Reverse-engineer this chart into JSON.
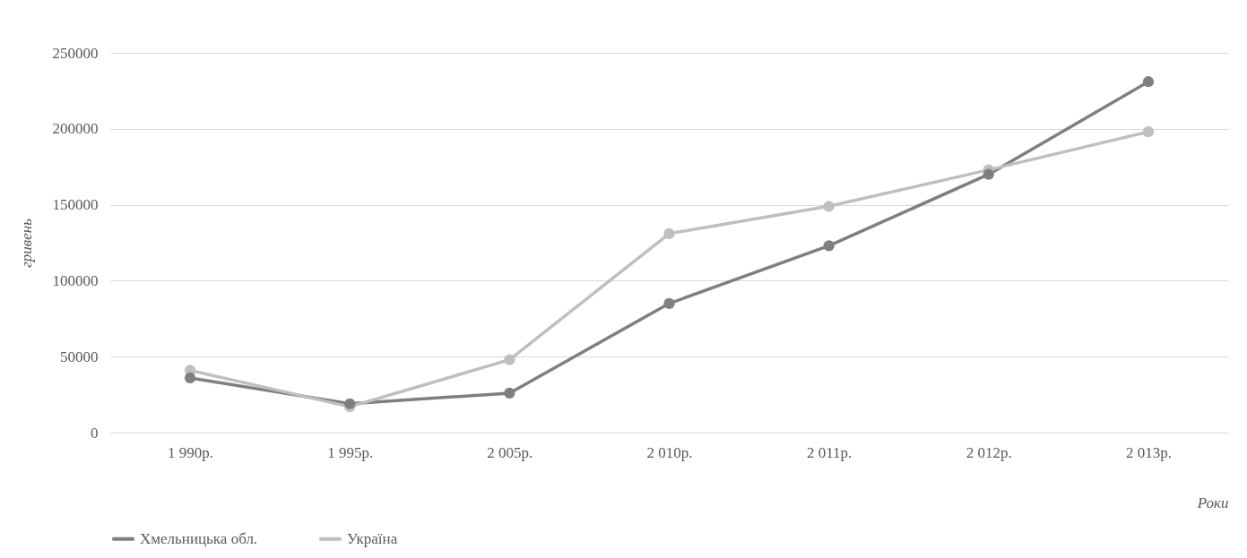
{
  "chart_data": {
    "type": "line",
    "xlabel": "Роки",
    "ylabel": "гривень",
    "categories": [
      "1 990р.",
      "1 995р.",
      "2 005р.",
      "2 010р.",
      "2 011р.",
      "2 012р.",
      "2 013р."
    ],
    "series": [
      {
        "name": "Хмельницька обл.",
        "color": "#7f7f7f",
        "values": [
          36000,
          19000,
          26000,
          85000,
          123000,
          170000,
          231000
        ]
      },
      {
        "name": "Україна",
        "color": "#bfbfbf",
        "values": [
          41000,
          17000,
          48000,
          131000,
          149000,
          173000,
          198000
        ]
      }
    ],
    "ylim": [
      0,
      250000
    ],
    "yticks": [
      0,
      50000,
      100000,
      150000,
      200000,
      250000
    ],
    "grid": "y",
    "legend": "bottom",
    "marker": "circle",
    "line_style": "solid"
  }
}
